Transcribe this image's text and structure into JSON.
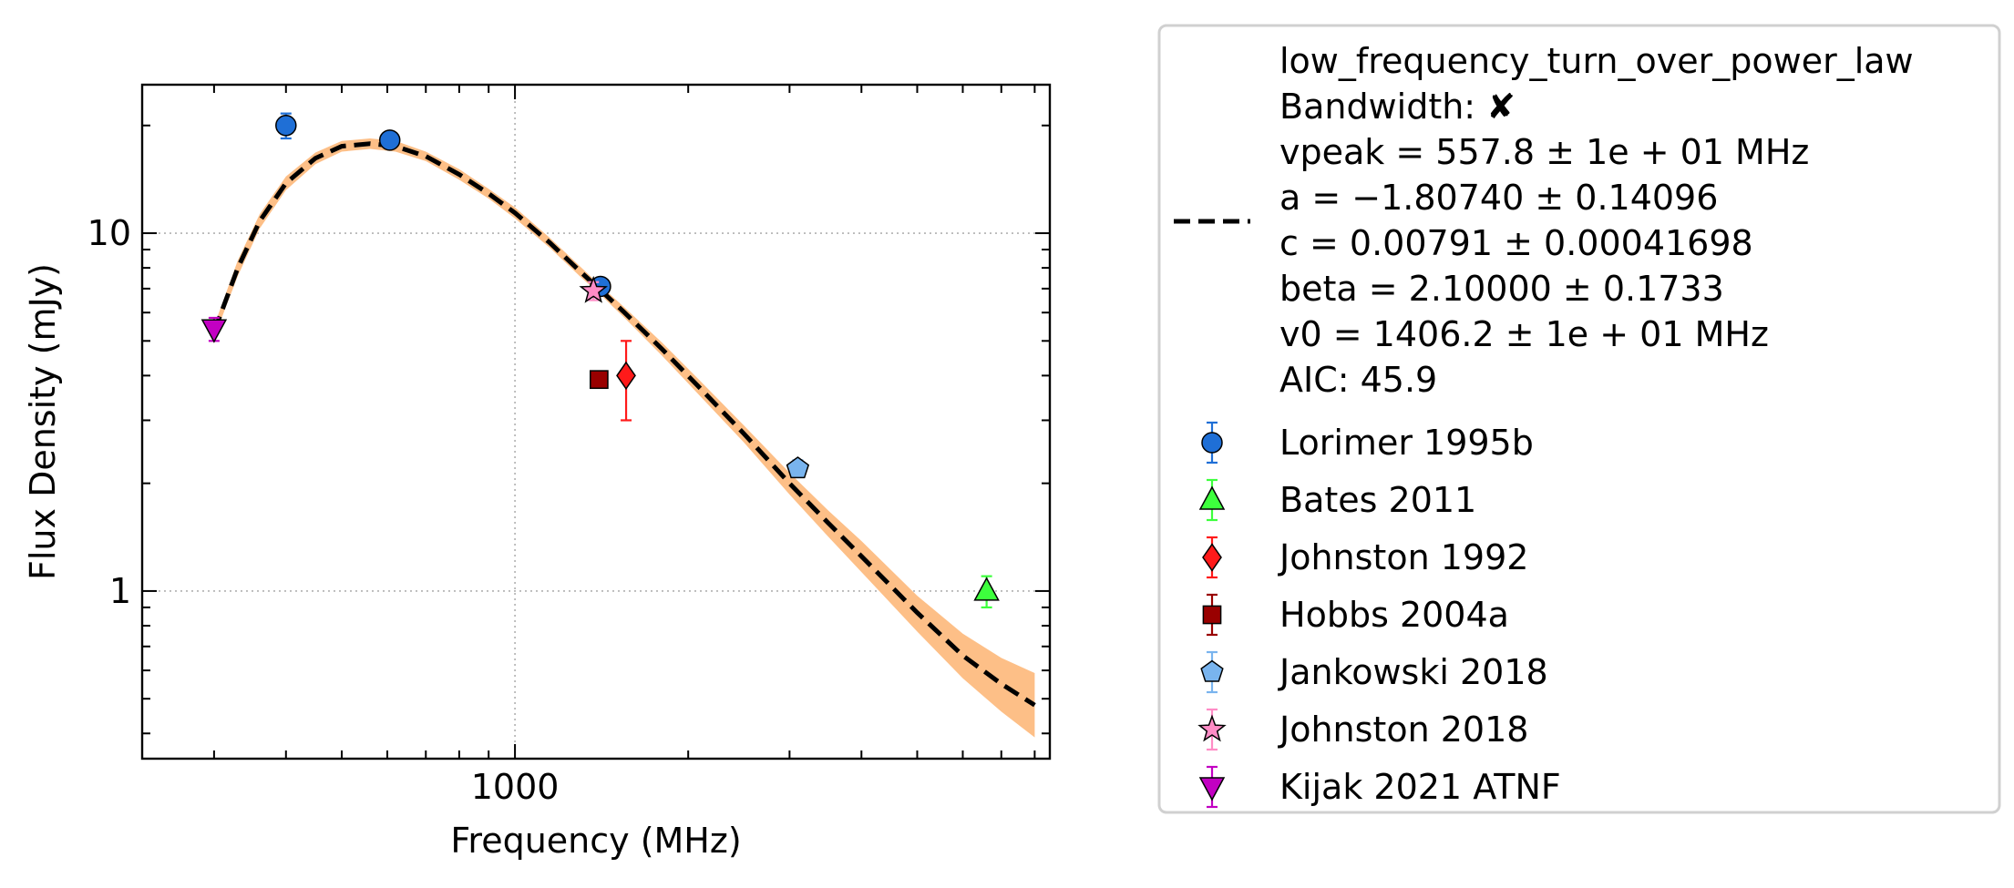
{
  "chart_data": {
    "type": "scatter",
    "xlabel": "Frequency (MHz)",
    "ylabel": "Flux Density (mJy)",
    "xscale": "log",
    "yscale": "log",
    "xlim": [
      225,
      8500
    ],
    "ylim": [
      0.34,
      26
    ],
    "x_ticks": [
      {
        "value": 1000,
        "label": "1000"
      }
    ],
    "y_ticks": [
      {
        "value": 1,
        "label": "1"
      },
      {
        "value": 10,
        "label": "10"
      }
    ],
    "grid": true,
    "legend_position": "outside-right",
    "model": {
      "name": "low_frequency_turn_over_power_law",
      "legend_lines": [
        "low_frequency_turn_over_power_law",
        "Bandwidth: ✘",
        "vpeak = 557.8 ± 1e + 01 MHz",
        "a = −1.80740 ± 0.14096",
        "c = 0.00791 ± 0.00041698",
        "beta = 2.10000 ± 0.1733",
        "v0 = 1406.2 ± 1e + 01 MHz",
        "AIC: 45.9"
      ],
      "line_color": "#000000",
      "band_color": "#fdbf87",
      "x": [
        300,
        330,
        360,
        400,
        450,
        500,
        560,
        620,
        700,
        800,
        900,
        1000,
        1150,
        1300,
        1406,
        1550,
        1800,
        2100,
        2500,
        3000,
        3500,
        4000,
        5000,
        6000,
        7000,
        8000
      ],
      "y": [
        5.3,
        8.0,
        10.8,
        13.8,
        16.2,
        17.5,
        17.8,
        17.5,
        16.4,
        14.6,
        12.9,
        11.4,
        9.4,
        7.8,
        6.95,
        6.0,
        4.75,
        3.68,
        2.75,
        2.0,
        1.55,
        1.25,
        0.87,
        0.66,
        0.55,
        0.48
      ],
      "band_lower": [
        5.1,
        7.6,
        10.3,
        13.2,
        15.6,
        16.9,
        17.2,
        16.9,
        15.9,
        14.1,
        12.5,
        11.0,
        9.1,
        7.55,
        6.75,
        5.8,
        4.55,
        3.5,
        2.6,
        1.86,
        1.42,
        1.13,
        0.77,
        0.57,
        0.46,
        0.39
      ],
      "band_upper": [
        5.5,
        8.4,
        11.3,
        14.4,
        16.8,
        18.1,
        18.4,
        18.1,
        16.9,
        15.1,
        13.3,
        11.8,
        9.7,
        8.05,
        7.15,
        6.2,
        4.95,
        3.86,
        2.9,
        2.14,
        1.68,
        1.38,
        0.97,
        0.76,
        0.65,
        0.59
      ]
    },
    "series": [
      {
        "name": "Lorimer 1995b",
        "marker": "circle",
        "color": "#1f6fd6",
        "points": [
          {
            "x": 400,
            "y": 20.0,
            "yerr": 1.6
          },
          {
            "x": 606,
            "y": 18.2,
            "yerr": 0.5
          },
          {
            "x": 1408,
            "y": 7.1,
            "yerr": 0.3
          }
        ]
      },
      {
        "name": "Bates 2011",
        "marker": "triangle-up",
        "color": "#3dff3d",
        "points": [
          {
            "x": 6600,
            "y": 1.0,
            "yerr": 0.1
          }
        ]
      },
      {
        "name": "Johnston 1992",
        "marker": "diamond",
        "color": "#ff1a1a",
        "points": [
          {
            "x": 1560,
            "y": 4.0,
            "yerr": 1.0
          }
        ]
      },
      {
        "name": "Hobbs 2004a",
        "marker": "square",
        "color": "#990000",
        "points": [
          {
            "x": 1400,
            "y": 3.9,
            "yerr": 0.15
          }
        ]
      },
      {
        "name": "Jankowski 2018",
        "marker": "pentagon",
        "color": "#79b4ee",
        "points": [
          {
            "x": 3100,
            "y": 2.2,
            "yerr": 0.12
          }
        ]
      },
      {
        "name": "Johnston 2018",
        "marker": "star",
        "color": "#ff8cc6",
        "points": [
          {
            "x": 1369,
            "y": 6.9,
            "yerr": 0.4
          }
        ]
      },
      {
        "name": "Kijak 2021 ATNF",
        "marker": "triangle-down",
        "color": "#c200c2",
        "points": [
          {
            "x": 300,
            "y": 5.4,
            "yerr": 0.4
          }
        ]
      }
    ]
  }
}
